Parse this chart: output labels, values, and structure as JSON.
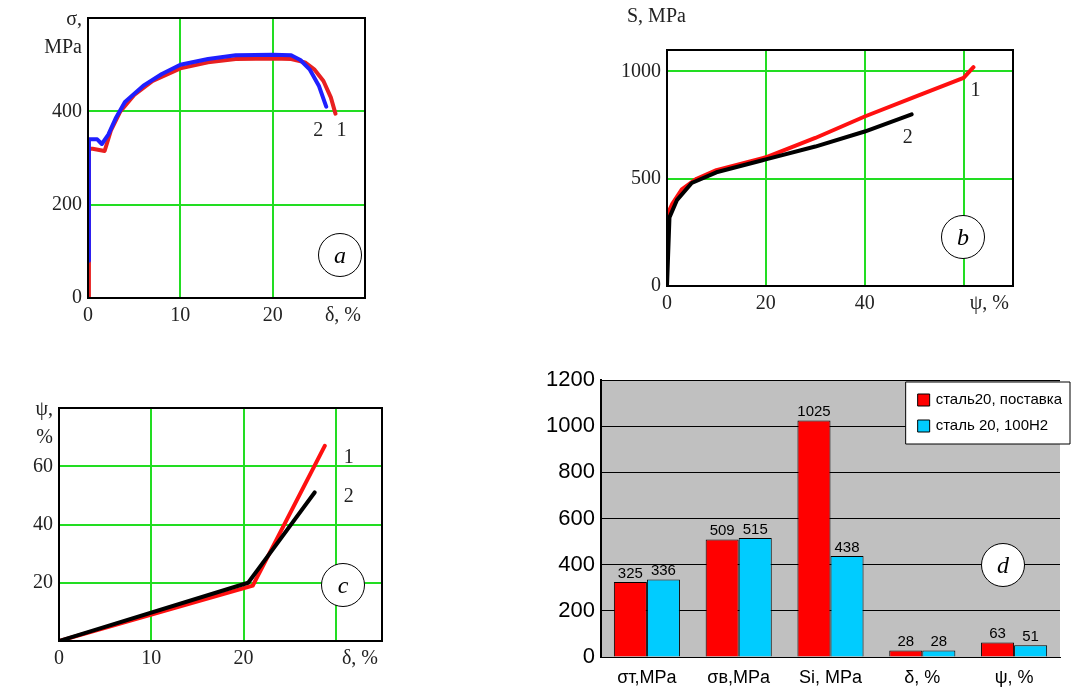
{
  "chart_data": [
    {
      "type": "line",
      "xlabel": "δ, %",
      "ylabel": "σ, MPa",
      "xlim": [
        0,
        30
      ],
      "ylim": [
        0,
        600
      ],
      "xticks": [
        0,
        10,
        20
      ],
      "yticks": [
        0,
        200,
        400
      ],
      "grid": true,
      "annotations": [
        "a"
      ],
      "series": [
        {
          "name": "1",
          "color": "#e82020",
          "x": [
            0,
            0.1,
            0.5,
            1.8,
            2.5,
            3.5,
            5,
            7,
            10,
            13,
            16,
            20,
            22,
            23.5,
            24.5,
            25.5,
            26.3,
            26.8
          ],
          "values": [
            0,
            320,
            320,
            315,
            360,
            400,
            435,
            465,
            492,
            505,
            512,
            513,
            512,
            505,
            490,
            465,
            430,
            395
          ]
        },
        {
          "name": "2",
          "color": "#1f1fff",
          "x": [
            0,
            0.1,
            1,
            1.5,
            2.2,
            3,
            4,
            6,
            8,
            10,
            13,
            16,
            20,
            22,
            23,
            24,
            25,
            25.8
          ],
          "values": [
            80,
            340,
            340,
            330,
            350,
            385,
            420,
            455,
            480,
            500,
            512,
            520,
            521,
            520,
            510,
            490,
            455,
            410
          ]
        }
      ]
    },
    {
      "type": "line",
      "xlabel": "ψ, %",
      "ylabel": "S, MPa",
      "xlim": [
        0,
        70
      ],
      "ylim": [
        0,
        1100
      ],
      "xticks": [
        0,
        20,
        40,
        {
          "value": 60,
          "label": null
        }
      ],
      "yticks": [
        0,
        500,
        1000
      ],
      "grid": true,
      "annotations": [
        "b"
      ],
      "series": [
        {
          "name": "1",
          "color": "#ff1010",
          "x": [
            0,
            0,
            1,
            3,
            6,
            10,
            20,
            30,
            40,
            50,
            60,
            62
          ],
          "values": [
            0,
            330,
            380,
            450,
            500,
            540,
            600,
            690,
            790,
            880,
            970,
            1020
          ]
        },
        {
          "name": "2",
          "color": "#000000",
          "x": [
            0,
            0.5,
            2,
            5,
            10,
            20,
            30,
            40,
            49.5
          ],
          "values": [
            0,
            320,
            400,
            480,
            530,
            590,
            650,
            720,
            800
          ]
        }
      ]
    },
    {
      "type": "line",
      "xlabel": "δ, %",
      "ylabel": "ψ, %",
      "xlim": [
        0,
        35
      ],
      "ylim": [
        0,
        80
      ],
      "xticks": [
        0,
        10,
        20,
        {
          "value": 30,
          "label": null
        }
      ],
      "yticks": [
        20,
        40,
        60
      ],
      "grid": true,
      "annotations": [
        "c"
      ],
      "series": [
        {
          "name": "1",
          "color": "#ff1010",
          "x": [
            0,
            21,
            28.8
          ],
          "values": [
            0,
            19,
            67
          ]
        },
        {
          "name": "2",
          "color": "#000000",
          "x": [
            0,
            20.5,
            27.7
          ],
          "values": [
            0,
            20,
            51
          ]
        }
      ]
    },
    {
      "type": "bar",
      "categories": [
        "σт,MPa",
        "σв,MPa",
        "Si, MPa",
        "δ, %",
        "ψ, %"
      ],
      "ylim": [
        0,
        1200
      ],
      "yticks": [
        0,
        200,
        400,
        600,
        800,
        1000,
        1200
      ],
      "grid": "y",
      "legend": "top right",
      "data_labels": true,
      "annotations": [
        "d"
      ],
      "series": [
        {
          "name": "сталь20, поставка",
          "color": "#ff0000",
          "values": [
            325,
            509,
            1025,
            28,
            63
          ]
        },
        {
          "name": "сталь 20, 100Н2",
          "color": "#00ccff",
          "values": [
            336,
            515,
            438,
            28,
            51
          ]
        }
      ]
    }
  ]
}
